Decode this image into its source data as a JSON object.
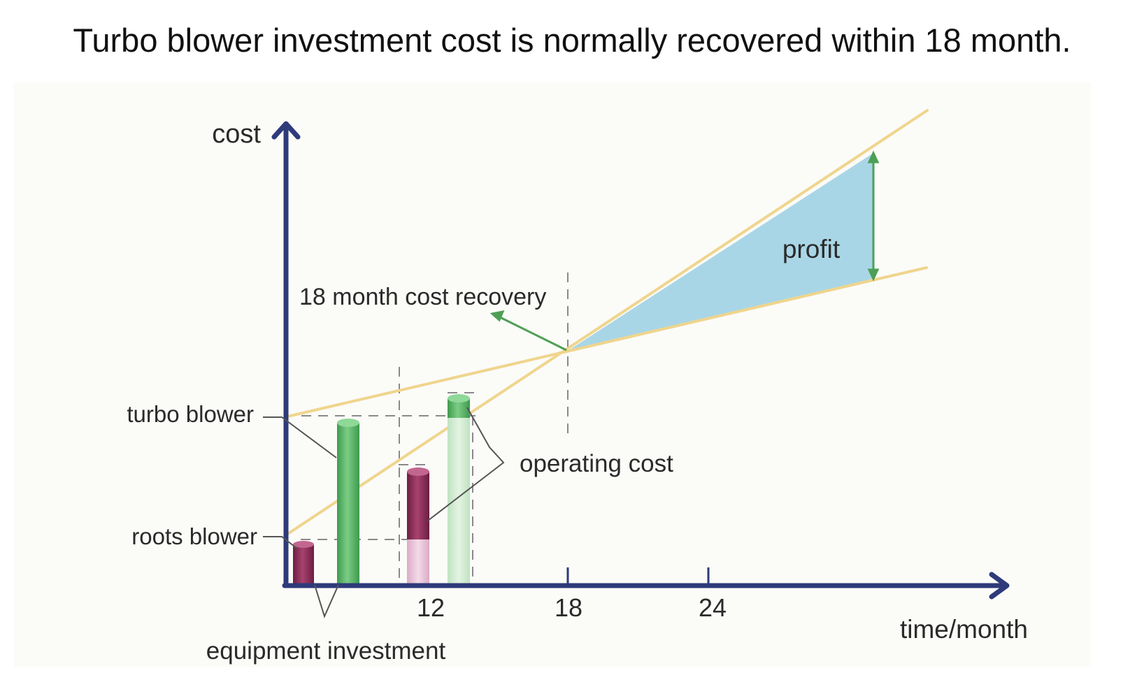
{
  "title": "Turbo blower investment cost is normally recovered within 18 month.",
  "diagram": {
    "y_axis_label": "cost",
    "x_axis_label": "time/month",
    "x_ticks": [
      "12",
      "18",
      "24"
    ],
    "labels": {
      "turbo_blower": "turbo blower",
      "roots_blower": "roots blower",
      "cost_recovery": "18 month cost recovery",
      "operating_cost": "operating cost",
      "profit": "profit",
      "equipment_investment": "equipment investment"
    }
  },
  "colors": {
    "axis": "#2e3a7a",
    "cost_line": "#efd58d",
    "profit_area": "#a9d6e6",
    "turbo_bar": "#5cb66a",
    "turbo_bar_light": "#cfe9cf",
    "roots_bar": "#8c2d5a",
    "roots_bar_light": "#e7c3d8",
    "arrow": "#4d9f55",
    "dashed": "#8a8a8a"
  }
}
